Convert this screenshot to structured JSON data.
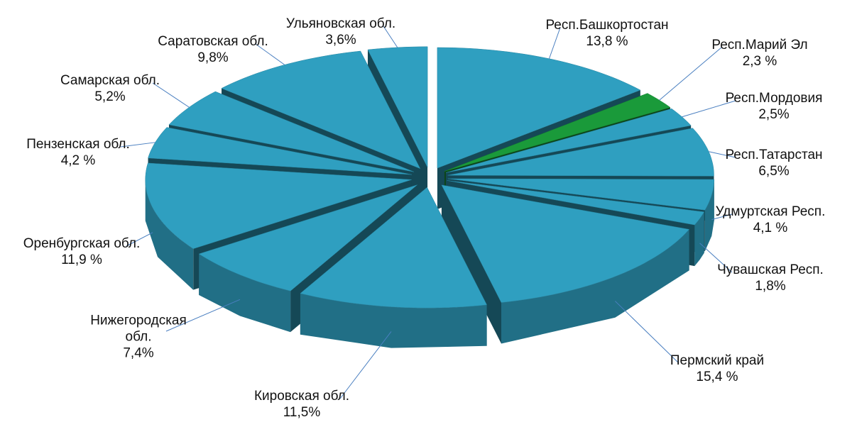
{
  "chart_data": {
    "type": "pie3d",
    "categories": [
      "Респ.Башкортостан",
      "Респ.Марий Эл",
      "Респ.Мордовия",
      "Респ.Татарстан",
      "Удмуртская Респ.",
      "Чувашская Респ.",
      "Пермский край",
      "Кировская обл.",
      "Нижегородская обл.",
      "Оренбургская обл.",
      "Пензенская обл.",
      "Самарская обл.",
      "Саратовская обл.",
      "Ульяновская обл."
    ],
    "values": [
      13.8,
      2.3,
      2.5,
      6.5,
      4.1,
      1.8,
      15.4,
      11.5,
      7.4,
      11.9,
      4.2,
      5.2,
      9.8,
      3.6
    ],
    "value_labels": [
      "13,8 %",
      "2,3 %",
      "2,5%",
      "6,5%",
      "4,1 %",
      "1,8%",
      "15,4 %",
      "11,5%",
      "7,4%",
      "11,9 %",
      "4,2 %",
      "5,2%",
      "9,8%",
      "3,6%"
    ],
    "colors": [
      "#2f9fc0",
      "#1a9a3a",
      "#2f9fc0",
      "#2f9fc0",
      "#2f9fc0",
      "#2f9fc0",
      "#2f9fc0",
      "#2f9fc0",
      "#2f9fc0",
      "#2f9fc0",
      "#2f9fc0",
      "#2f9fc0",
      "#2f9fc0",
      "#2f9fc0"
    ]
  }
}
